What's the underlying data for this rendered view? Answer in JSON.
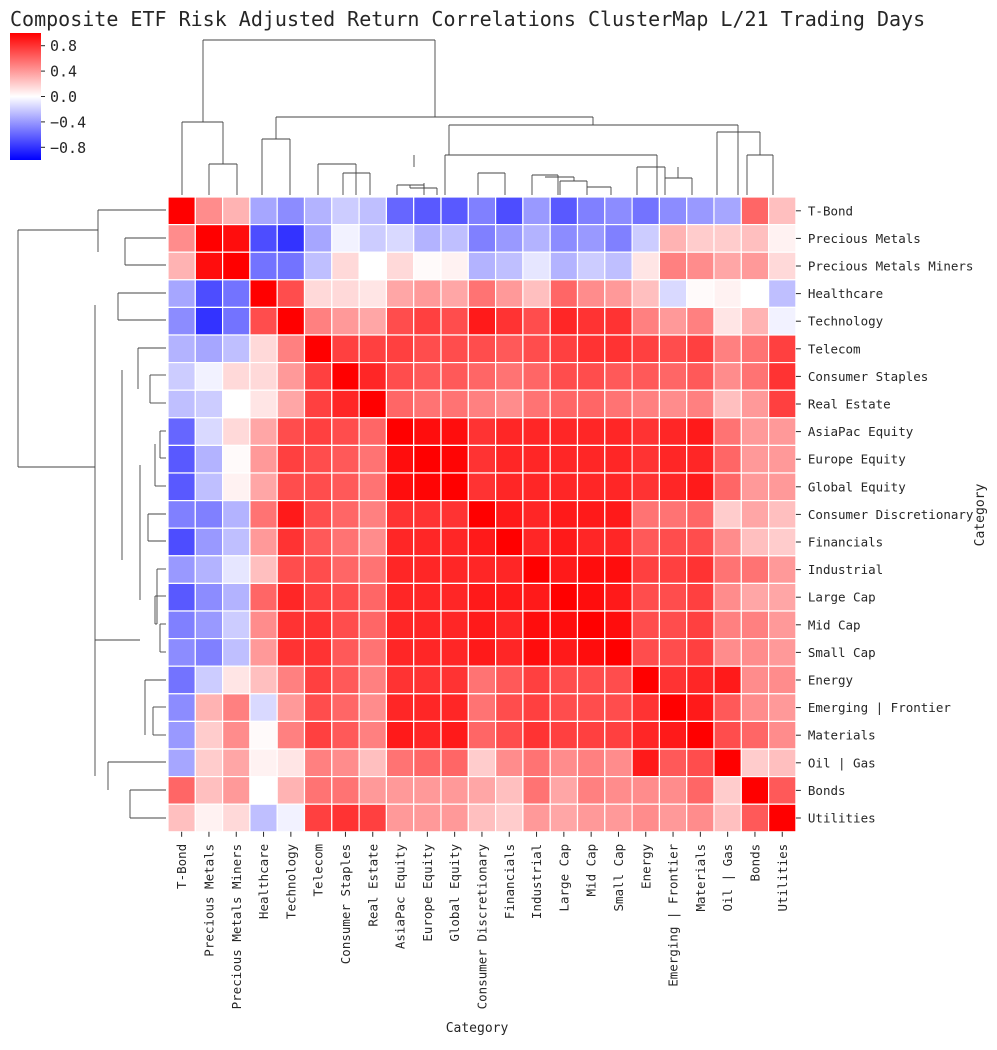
{
  "chart_data": {
    "type": "heatmap",
    "title": "Composite ETF Risk Adjusted Return Correlations ClusterMap L/21 Trading Days",
    "xlabel": "Category",
    "ylabel": "Category",
    "categories": [
      "T-Bond",
      "Precious Metals",
      "Precious Metals Miners",
      "Healthcare",
      "Technology",
      "Telecom",
      "Consumer Staples",
      "Real Estate",
      "AsiaPac Equity",
      "Europe Equity",
      "Global Equity",
      "Consumer Discretionary",
      "Financials",
      "Industrial",
      "Large Cap",
      "Mid Cap",
      "Small Cap",
      "Energy",
      "Emerging | Frontier",
      "Materials",
      "Oil | Gas",
      "Bonds",
      "Utilities"
    ],
    "values": [
      [
        1.0,
        0.45,
        0.3,
        -0.35,
        -0.45,
        -0.3,
        -0.2,
        -0.25,
        -0.6,
        -0.65,
        -0.65,
        -0.5,
        -0.7,
        -0.4,
        -0.65,
        -0.5,
        -0.45,
        -0.55,
        -0.45,
        -0.4,
        -0.35,
        0.6,
        0.25
      ],
      [
        0.45,
        1.0,
        0.95,
        -0.7,
        -0.8,
        -0.35,
        -0.05,
        -0.2,
        -0.15,
        -0.3,
        -0.25,
        -0.5,
        -0.4,
        -0.3,
        -0.45,
        -0.4,
        -0.5,
        -0.2,
        0.3,
        0.2,
        0.2,
        0.25,
        0.05
      ],
      [
        0.3,
        0.95,
        1.0,
        -0.55,
        -0.55,
        -0.25,
        0.15,
        0.0,
        0.15,
        0.02,
        0.05,
        -0.3,
        -0.25,
        -0.1,
        -0.3,
        -0.2,
        -0.25,
        0.1,
        0.5,
        0.45,
        0.35,
        0.4,
        0.15
      ],
      [
        -0.35,
        -0.7,
        -0.55,
        1.0,
        0.7,
        0.15,
        0.15,
        0.1,
        0.35,
        0.4,
        0.35,
        0.55,
        0.4,
        0.25,
        0.6,
        0.45,
        0.4,
        0.25,
        -0.15,
        0.02,
        0.05,
        0.0,
        -0.25
      ],
      [
        -0.45,
        -0.8,
        -0.55,
        0.7,
        1.0,
        0.5,
        0.4,
        0.35,
        0.7,
        0.75,
        0.7,
        0.9,
        0.8,
        0.7,
        0.85,
        0.8,
        0.8,
        0.5,
        0.4,
        0.5,
        0.1,
        0.3,
        -0.05
      ],
      [
        -0.3,
        -0.35,
        -0.25,
        0.15,
        0.5,
        1.0,
        0.75,
        0.75,
        0.75,
        0.7,
        0.7,
        0.7,
        0.65,
        0.7,
        0.75,
        0.8,
        0.8,
        0.75,
        0.7,
        0.75,
        0.5,
        0.55,
        0.75
      ],
      [
        -0.2,
        -0.05,
        0.15,
        0.15,
        0.4,
        0.75,
        1.0,
        0.85,
        0.7,
        0.65,
        0.65,
        0.6,
        0.55,
        0.6,
        0.7,
        0.7,
        0.65,
        0.65,
        0.6,
        0.65,
        0.45,
        0.55,
        0.8
      ],
      [
        -0.25,
        -0.2,
        0.0,
        0.1,
        0.35,
        0.75,
        0.85,
        1.0,
        0.6,
        0.55,
        0.55,
        0.5,
        0.45,
        0.55,
        0.6,
        0.6,
        0.55,
        0.5,
        0.45,
        0.5,
        0.25,
        0.4,
        0.75
      ],
      [
        -0.6,
        -0.15,
        0.15,
        0.35,
        0.7,
        0.75,
        0.7,
        0.6,
        1.0,
        0.95,
        0.95,
        0.8,
        0.85,
        0.85,
        0.85,
        0.85,
        0.85,
        0.8,
        0.85,
        0.9,
        0.55,
        0.4,
        0.4
      ],
      [
        -0.65,
        -0.3,
        0.02,
        0.4,
        0.75,
        0.7,
        0.65,
        0.55,
        0.95,
        1.0,
        0.98,
        0.8,
        0.85,
        0.85,
        0.85,
        0.85,
        0.85,
        0.8,
        0.85,
        0.85,
        0.6,
        0.4,
        0.4
      ],
      [
        -0.65,
        -0.25,
        0.05,
        0.35,
        0.7,
        0.7,
        0.65,
        0.55,
        0.95,
        0.98,
        1.0,
        0.8,
        0.85,
        0.85,
        0.85,
        0.85,
        0.85,
        0.8,
        0.85,
        0.9,
        0.6,
        0.4,
        0.4
      ],
      [
        -0.5,
        -0.5,
        -0.3,
        0.55,
        0.9,
        0.7,
        0.6,
        0.5,
        0.8,
        0.8,
        0.8,
        1.0,
        0.9,
        0.85,
        0.9,
        0.9,
        0.9,
        0.55,
        0.55,
        0.6,
        0.2,
        0.35,
        0.25
      ],
      [
        -0.7,
        -0.4,
        -0.25,
        0.4,
        0.8,
        0.65,
        0.55,
        0.45,
        0.85,
        0.85,
        0.85,
        0.9,
        1.0,
        0.85,
        0.9,
        0.85,
        0.85,
        0.65,
        0.7,
        0.7,
        0.45,
        0.25,
        0.2
      ],
      [
        -0.4,
        -0.3,
        -0.1,
        0.25,
        0.7,
        0.7,
        0.6,
        0.55,
        0.85,
        0.85,
        0.85,
        0.85,
        0.85,
        1.0,
        0.9,
        0.95,
        0.95,
        0.75,
        0.75,
        0.8,
        0.55,
        0.55,
        0.4
      ],
      [
        -0.65,
        -0.45,
        -0.3,
        0.6,
        0.85,
        0.75,
        0.7,
        0.6,
        0.85,
        0.85,
        0.85,
        0.9,
        0.9,
        0.9,
        1.0,
        0.95,
        0.9,
        0.7,
        0.7,
        0.75,
        0.45,
        0.35,
        0.35
      ],
      [
        -0.5,
        -0.4,
        -0.2,
        0.45,
        0.8,
        0.8,
        0.7,
        0.6,
        0.85,
        0.85,
        0.85,
        0.9,
        0.85,
        0.95,
        0.95,
        1.0,
        0.95,
        0.7,
        0.7,
        0.75,
        0.5,
        0.5,
        0.4
      ],
      [
        -0.45,
        -0.5,
        -0.25,
        0.4,
        0.8,
        0.8,
        0.65,
        0.55,
        0.85,
        0.85,
        0.85,
        0.9,
        0.85,
        0.95,
        0.9,
        0.95,
        1.0,
        0.7,
        0.7,
        0.75,
        0.45,
        0.45,
        0.4
      ],
      [
        -0.55,
        -0.2,
        0.1,
        0.25,
        0.5,
        0.75,
        0.65,
        0.5,
        0.8,
        0.8,
        0.8,
        0.55,
        0.65,
        0.75,
        0.7,
        0.7,
        0.7,
        1.0,
        0.8,
        0.85,
        0.9,
        0.45,
        0.45
      ],
      [
        -0.45,
        0.3,
        0.5,
        -0.15,
        0.4,
        0.7,
        0.6,
        0.45,
        0.85,
        0.85,
        0.85,
        0.55,
        0.7,
        0.75,
        0.7,
        0.7,
        0.7,
        0.8,
        1.0,
        0.9,
        0.65,
        0.45,
        0.4
      ],
      [
        -0.4,
        0.2,
        0.45,
        0.02,
        0.5,
        0.75,
        0.65,
        0.5,
        0.9,
        0.85,
        0.9,
        0.6,
        0.7,
        0.8,
        0.75,
        0.75,
        0.75,
        0.85,
        0.9,
        1.0,
        0.7,
        0.6,
        0.45
      ],
      [
        -0.35,
        0.2,
        0.35,
        0.05,
        0.1,
        0.5,
        0.45,
        0.25,
        0.55,
        0.6,
        0.6,
        0.2,
        0.45,
        0.55,
        0.45,
        0.5,
        0.45,
        0.9,
        0.65,
        0.7,
        1.0,
        0.2,
        0.25
      ],
      [
        0.6,
        0.25,
        0.4,
        0.0,
        0.3,
        0.55,
        0.55,
        0.4,
        0.4,
        0.4,
        0.4,
        0.35,
        0.25,
        0.55,
        0.35,
        0.5,
        0.45,
        0.45,
        0.45,
        0.6,
        0.2,
        1.0,
        0.65
      ],
      [
        0.25,
        0.05,
        0.15,
        -0.25,
        -0.05,
        0.75,
        0.8,
        0.75,
        0.4,
        0.4,
        0.4,
        0.25,
        0.2,
        0.4,
        0.35,
        0.4,
        0.4,
        0.45,
        0.4,
        0.45,
        0.25,
        0.65,
        1.0
      ]
    ],
    "vmin": -1.0,
    "vmax": 1.0,
    "colormap": "bwr",
    "colorbar": {
      "ticks": [
        0.8,
        0.4,
        0.0,
        -0.4,
        -0.8
      ],
      "tick_labels": [
        "0.8",
        "0.4",
        "0.0",
        "−0.4",
        "−0.8"
      ]
    },
    "colors": {
      "low": "#0000ff",
      "mid": "#ffffff",
      "high": "#ff0000",
      "gridline": "#ffffff",
      "text": "#262626"
    }
  }
}
